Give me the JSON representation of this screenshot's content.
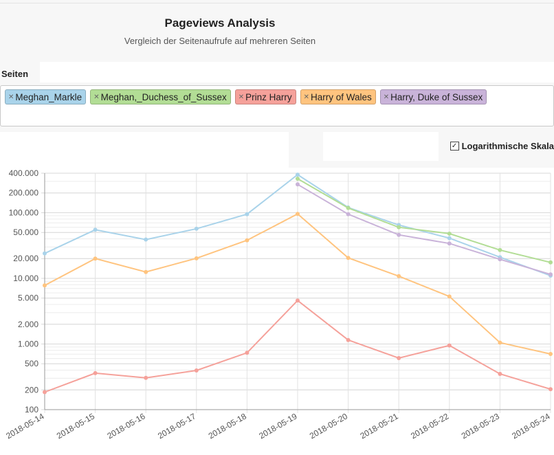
{
  "header": {
    "title": "Pageviews Analysis",
    "subtitle": "Vergleich der Seitenaufrufe auf mehreren Seiten"
  },
  "pages": {
    "label": "Seiten",
    "items": [
      {
        "label": "Meghan_Markle",
        "color": "#a9d3ea"
      },
      {
        "label": "Meghan,_Duchess_of_Sussex",
        "color": "#b2dd95"
      },
      {
        "label": "Prinz Harry",
        "color": "#f5a19a"
      },
      {
        "label": "Harry of Wales",
        "color": "#ffc47f"
      },
      {
        "label": "Harry, Duke of Sussex",
        "color": "#c9b3d9"
      }
    ]
  },
  "options": {
    "log_scale_label": "Logarithmische Skala",
    "log_scale_checked": true
  },
  "chart_data": {
    "type": "line",
    "log_scale": true,
    "grid": true,
    "ylim": [
      100,
      400000
    ],
    "x": [
      "2018-05-14",
      "2018-05-15",
      "2018-05-16",
      "2018-05-17",
      "2018-05-18",
      "2018-05-19",
      "2018-05-20",
      "2018-05-21",
      "2018-05-22",
      "2018-05-23",
      "2018-05-24"
    ],
    "y_ticks": [
      {
        "value": 400000,
        "label": "400.000"
      },
      {
        "value": 200000,
        "label": "200.000"
      },
      {
        "value": 100000,
        "label": "100.000"
      },
      {
        "value": 50000,
        "label": "50.000"
      },
      {
        "value": 20000,
        "label": "20.000"
      },
      {
        "value": 10000,
        "label": "10.000"
      },
      {
        "value": 5000,
        "label": "5.000"
      },
      {
        "value": 2000,
        "label": "2.000"
      },
      {
        "value": 1000,
        "label": "1.000"
      },
      {
        "value": 500,
        "label": "500"
      },
      {
        "value": 200,
        "label": "200"
      },
      {
        "value": 100,
        "label": "100"
      }
    ],
    "series": [
      {
        "color": "#a9d3ea",
        "values": [
          24000,
          55000,
          39000,
          57000,
          95000,
          380000,
          120000,
          65000,
          41000,
          21000,
          11000
        ]
      },
      {
        "color": "#b2dd95",
        "values": [
          null,
          null,
          null,
          null,
          null,
          330000,
          118000,
          60000,
          48000,
          27000,
          17500
        ]
      },
      {
        "color": "#f5a19a",
        "values": [
          185,
          360,
          305,
          395,
          735,
          4600,
          1150,
          610,
          950,
          350,
          205
        ]
      },
      {
        "color": "#ffc47f",
        "values": [
          7800,
          20000,
          12500,
          20200,
          38000,
          96000,
          20500,
          10800,
          5300,
          1050,
          705
        ]
      },
      {
        "color": "#c9b3d9",
        "values": [
          null,
          null,
          null,
          null,
          null,
          270000,
          95000,
          46000,
          34000,
          19500,
          11500
        ]
      }
    ]
  }
}
